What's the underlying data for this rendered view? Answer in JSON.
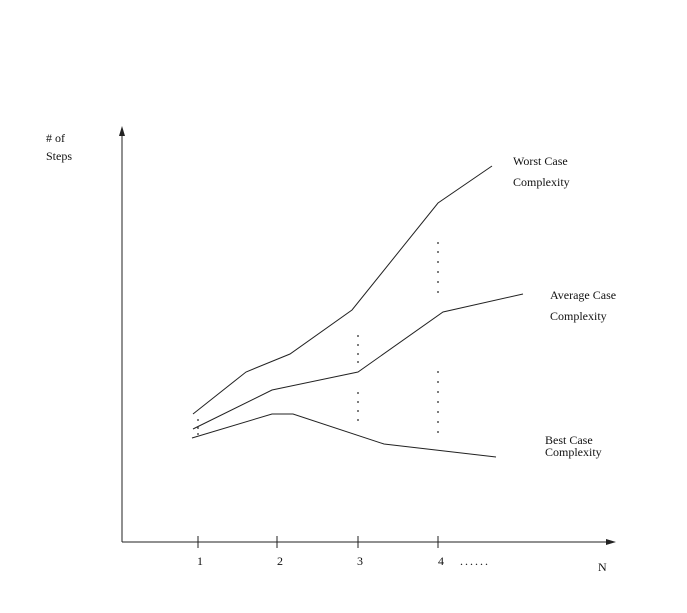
{
  "diagram": {
    "y_axis_label_line1": "# of",
    "y_axis_label_line2": "Steps",
    "x_axis_label": "N",
    "x_ticks": [
      "1",
      "2",
      "3",
      "4"
    ],
    "x_continuation": "......",
    "curves": {
      "worst": {
        "label_line1": "Worst Case",
        "label_line2": "Complexity"
      },
      "average": {
        "label_line1": "Average Case",
        "label_line2": "Complexity"
      },
      "best": {
        "label_line1": "Best Case",
        "label_line2": "Complexity"
      }
    },
    "stroke_color": "#222222"
  }
}
